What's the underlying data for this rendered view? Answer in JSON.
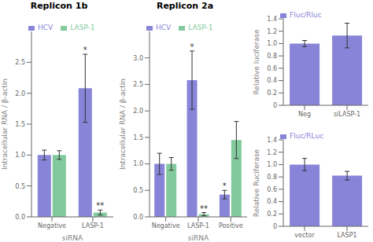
{
  "chart_data": [
    {
      "type": "bar",
      "title": "Replicon 1b",
      "categories": [
        "Negative",
        "LASP-1"
      ],
      "series": [
        {
          "name": "HCV",
          "color": "#8884d8",
          "values": [
            1.0,
            2.08
          ],
          "errors": [
            0.08,
            0.55
          ]
        },
        {
          "name": "LASP-1",
          "color": "#82ca9d",
          "values": [
            1.0,
            0.07
          ],
          "errors": [
            0.07,
            0.04
          ]
        }
      ],
      "xlabel": "siRNA",
      "ylabel": "Intracellular RNA / β-actin",
      "ylim": [
        0,
        3.0
      ],
      "yticks": [
        {
          "value": 0,
          "label": "0.0"
        },
        {
          "value": 0.5,
          "label": "0.5"
        },
        {
          "value": 1,
          "label": "1.0"
        },
        {
          "value": 1.5,
          "label": "1.5"
        },
        {
          "value": 2,
          "label": "2.0"
        },
        {
          "value": 2.5,
          "label": "2.5"
        }
      ],
      "legend": "upper left",
      "annotations": [
        {
          "text": "*",
          "series": "HCV",
          "category": "LASP-1"
        },
        {
          "text": "**",
          "series": "LASP-1",
          "category": "LASP-1"
        }
      ]
    },
    {
      "type": "bar",
      "title": "Replicon 2a",
      "categories": [
        "Negative",
        "LASP-1",
        "Positive"
      ],
      "series": [
        {
          "name": "HCV",
          "color": "#8884d8",
          "values": [
            1.0,
            2.58,
            0.42
          ],
          "errors": [
            0.2,
            0.55,
            0.08
          ]
        },
        {
          "name": "LASP-1",
          "color": "#82ca9d",
          "values": [
            1.0,
            0.05,
            1.45
          ],
          "errors": [
            0.12,
            0.03,
            0.35
          ]
        }
      ],
      "xlabel": "siRNA",
      "ylabel": "Intracellular RNA / β-actin",
      "ylim": [
        0,
        3.5
      ],
      "yticks": [
        {
          "value": 0,
          "label": "0.0"
        },
        {
          "value": 0.5,
          "label": "0.5"
        },
        {
          "value": 1,
          "label": "1.0"
        },
        {
          "value": 1.5,
          "label": "1.5"
        },
        {
          "value": 2,
          "label": "2.0"
        },
        {
          "value": 2.5,
          "label": "2.5"
        },
        {
          "value": 3,
          "label": "3.0"
        }
      ],
      "legend": "upper left",
      "annotations": [
        {
          "text": "*",
          "series": "HCV",
          "category": "LASP-1"
        },
        {
          "text": "**",
          "series": "LASP-1",
          "category": "LASP-1"
        },
        {
          "text": "*",
          "series": "HCV",
          "category": "Positive"
        }
      ]
    },
    {
      "type": "bar",
      "categories": [
        "Neg",
        "siLASP-1"
      ],
      "series": [
        {
          "name": "Fluc/Rluc",
          "color": "#8884d8",
          "values": [
            1.0,
            1.13
          ],
          "errors": [
            0.05,
            0.2
          ]
        }
      ],
      "ylabel": "Relative luciferase",
      "ylim": [
        0,
        1.4
      ],
      "yticks": [
        0,
        0.2,
        0.4,
        0.6,
        0.8,
        {
          "value": 1,
          "label": "1.0"
        },
        1.2,
        1.4
      ],
      "legend": "upper left"
    },
    {
      "type": "bar",
      "categories": [
        "vector",
        "LASP1"
      ],
      "series": [
        {
          "name": "Fluc/RLuc",
          "color": "#8884d8",
          "values": [
            1.0,
            0.82
          ],
          "errors": [
            0.1,
            0.07
          ]
        }
      ],
      "ylabel": "Relative Ruciferase",
      "ylim": [
        0,
        1.4
      ],
      "yticks": [
        0,
        0.2,
        0.4,
        0.6,
        0.8,
        {
          "value": 1,
          "label": "1.0"
        },
        1.2,
        1.4
      ],
      "legend": "upper left"
    }
  ]
}
